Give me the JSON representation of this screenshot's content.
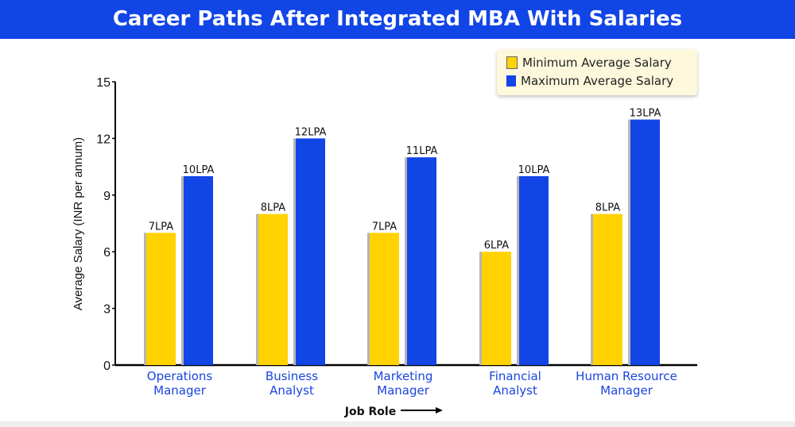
{
  "title": "Career Paths After Integrated MBA With Salaries",
  "chart_data": {
    "type": "bar",
    "title": "Career Paths After Integrated MBA With Salaries",
    "xlabel": "Job Role",
    "ylabel": "Average Salary (INR per annum)",
    "ylim": [
      0,
      15
    ],
    "yticks": [
      0,
      3,
      6,
      9,
      12,
      15
    ],
    "categories": [
      [
        "Operations",
        "Manager"
      ],
      [
        "Business",
        "Analyst"
      ],
      [
        "Marketing",
        "Manager"
      ],
      [
        "Financial",
        "Analyst"
      ],
      [
        "Human Resource",
        "Manager"
      ]
    ],
    "series": [
      {
        "name": "Minimum Average Salary",
        "color": "#ffd200",
        "values": [
          7,
          8,
          7,
          6,
          8
        ],
        "labels": [
          "7LPA",
          "8LPA",
          "7LPA",
          "6LPA",
          "8LPA"
        ]
      },
      {
        "name": "Maximum Average Salary",
        "color": "#1245e6",
        "values": [
          10,
          12,
          11,
          10,
          13
        ],
        "labels": [
          "10LPA",
          "12LPA",
          "11LPA",
          "10LPA",
          "13LPA"
        ]
      }
    ],
    "legend": "top-right",
    "grid": false
  }
}
